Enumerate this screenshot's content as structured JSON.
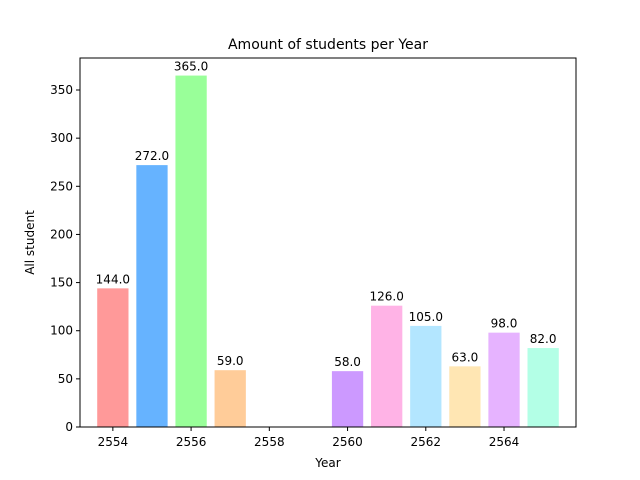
{
  "chart_data": {
    "type": "bar",
    "title": "Amount of students per Year",
    "xlabel": "Year",
    "ylabel": "All student",
    "x": [
      2554,
      2555,
      2556,
      2557,
      2560,
      2561,
      2562,
      2563,
      2564,
      2565
    ],
    "values": [
      144.0,
      272.0,
      365.0,
      59.0,
      58.0,
      126.0,
      105.0,
      63.0,
      98.0,
      82.0
    ],
    "value_labels": [
      "144.0",
      "272.0",
      "365.0",
      "59.0",
      "58.0",
      "126.0",
      "105.0",
      "63.0",
      "98.0",
      "82.0"
    ],
    "colors": [
      "#ff9999",
      "#66b3ff",
      "#99ff99",
      "#ffcc99",
      "#cc99ff",
      "#ffb3e6",
      "#b3e6ff",
      "#ffe6b3",
      "#e6b3ff",
      "#b3ffe6"
    ],
    "xticks": [
      2554,
      2556,
      2558,
      2560,
      2562,
      2564
    ],
    "xtick_labels": [
      "2554",
      "2556",
      "2558",
      "2560",
      "2562",
      "2564"
    ],
    "yticks": [
      0,
      50,
      100,
      150,
      200,
      250,
      300,
      350
    ],
    "ytick_labels": [
      "0",
      "50",
      "100",
      "150",
      "200",
      "250",
      "300",
      "350"
    ],
    "xlim": [
      2553.16,
      2565.84
    ],
    "ylim": [
      0,
      383.25
    ],
    "grid": false,
    "legend": false
  }
}
